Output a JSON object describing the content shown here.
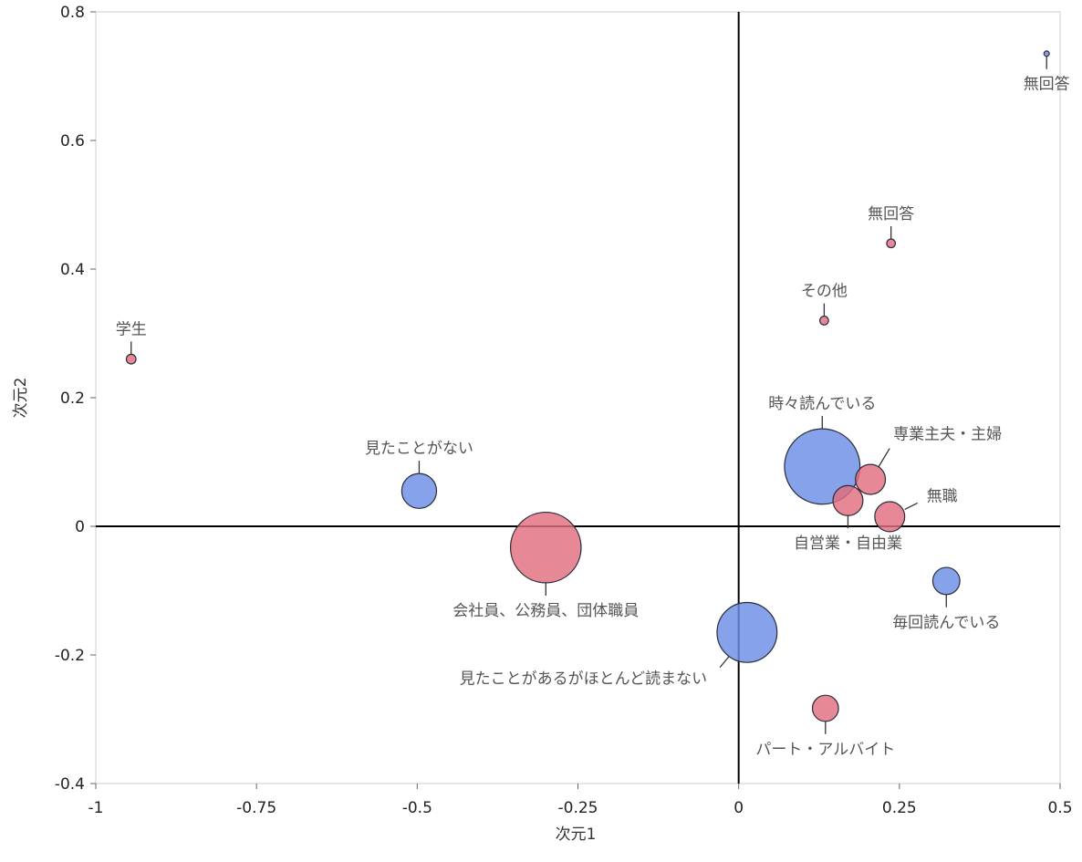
{
  "chart_data": {
    "type": "scatter",
    "xlabel": "次元1",
    "ylabel": "次元2",
    "xlim": [
      -1,
      0.5
    ],
    "ylim": [
      -0.4,
      0.8
    ],
    "xticks": [
      "-1",
      "-0.75",
      "-0.5",
      "-0.25",
      "0",
      "0.25",
      "0.5"
    ],
    "yticks": [
      "0.8",
      "0.6",
      "0.4",
      "0.2",
      "0",
      "-0.2",
      "-0.4"
    ],
    "grid": false,
    "colors": {
      "blue": "#6a8ee6",
      "red": "#e06e7e"
    },
    "points": [
      {
        "label": "学生",
        "x": -0.945,
        "y": 0.26,
        "size": 1,
        "group": "red"
      },
      {
        "label": "見たことがない",
        "x": -0.497,
        "y": 0.055,
        "size": 3.6,
        "group": "blue"
      },
      {
        "label": "会社員、公務員、団体職員",
        "x": -0.3,
        "y": -0.033,
        "size": 7.3,
        "group": "red"
      },
      {
        "label": "見たことがあるがほとんど読まない",
        "x": 0.013,
        "y": -0.165,
        "size": 6.2,
        "group": "blue"
      },
      {
        "label": "時々読んでいる",
        "x": 0.13,
        "y": 0.093,
        "size": 7.8,
        "group": "blue"
      },
      {
        "label": "専業主夫・主婦",
        "x": 0.205,
        "y": 0.073,
        "size": 3.1,
        "group": "red"
      },
      {
        "label": "自営業・自由業",
        "x": 0.17,
        "y": 0.04,
        "size": 3.1,
        "group": "red"
      },
      {
        "label": "無職",
        "x": 0.235,
        "y": 0.015,
        "size": 3.1,
        "group": "red"
      },
      {
        "label": "毎回読んでいる",
        "x": 0.323,
        "y": -0.085,
        "size": 2.8,
        "group": "blue"
      },
      {
        "label": "パート・アルバイト",
        "x": 0.135,
        "y": -0.283,
        "size": 2.7,
        "group": "red"
      },
      {
        "label": "その他",
        "x": 0.133,
        "y": 0.32,
        "size": 0.9,
        "group": "red"
      },
      {
        "label": "無回答",
        "x": 0.237,
        "y": 0.44,
        "size": 0.9,
        "group": "red"
      },
      {
        "label": "無回答",
        "x": 0.479,
        "y": 0.735,
        "size": 0.55,
        "group": "blue"
      }
    ]
  }
}
